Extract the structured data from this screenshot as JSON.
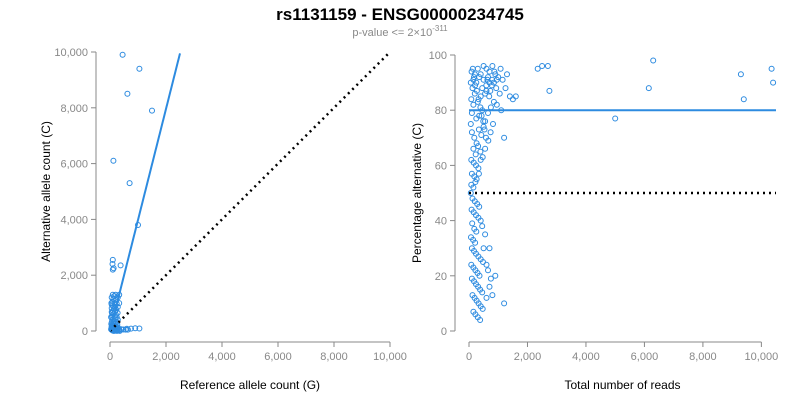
{
  "title": "rs1131159 - ENSG00000234745",
  "subtitle": {
    "prefix": "p-value <= 2",
    "times": "×",
    "base": "10",
    "exponent": "-311"
  },
  "colors": {
    "points": "#2d8be0",
    "fit": "#2d8be0",
    "reference": "#000000",
    "axis": "#888888"
  },
  "chart_data": [
    {
      "type": "scatter",
      "xlabel": "Reference allele count (G)",
      "ylabel": "Alternative allele count (C)",
      "xlim": [
        0,
        10000
      ],
      "ylim": [
        0,
        10000
      ],
      "xticks": [
        0,
        2000,
        4000,
        6000,
        8000,
        10000
      ],
      "yticks": [
        0,
        2000,
        4000,
        6000,
        8000,
        10000
      ],
      "tick_labels_x": [
        "0",
        "2,000",
        "4,000",
        "6,000",
        "8,000",
        "10,000"
      ],
      "tick_labels_y": [
        "0",
        "2,000",
        "4,000",
        "6,000",
        "8,000",
        "10,000"
      ],
      "fit_line": [
        [
          0,
          0
        ],
        [
          2500,
          9950
        ]
      ],
      "reference_line": [
        [
          0,
          0
        ],
        [
          10000,
          10000
        ]
      ],
      "points": [
        [
          450,
          9900
        ],
        [
          1050,
          9400
        ],
        [
          620,
          8500
        ],
        [
          1500,
          7900
        ],
        [
          120,
          6100
        ],
        [
          700,
          5300
        ],
        [
          1000,
          3800
        ],
        [
          100,
          2550
        ],
        [
          90,
          2400
        ],
        [
          130,
          2250
        ],
        [
          100,
          2200
        ],
        [
          380,
          2350
        ],
        [
          100,
          1300
        ],
        [
          150,
          1250
        ],
        [
          200,
          1300
        ],
        [
          330,
          1300
        ],
        [
          60,
          1200
        ],
        [
          120,
          1150
        ],
        [
          220,
          1100
        ],
        [
          280,
          1200
        ],
        [
          90,
          1050
        ],
        [
          160,
          1000
        ],
        [
          60,
          950
        ],
        [
          240,
          980
        ],
        [
          330,
          1000
        ],
        [
          100,
          900
        ],
        [
          190,
          870
        ],
        [
          280,
          860
        ],
        [
          60,
          820
        ],
        [
          150,
          800
        ],
        [
          220,
          760
        ],
        [
          100,
          720
        ],
        [
          180,
          700
        ],
        [
          60,
          680
        ],
        [
          270,
          650
        ],
        [
          130,
          620
        ],
        [
          210,
          580
        ],
        [
          80,
          560
        ],
        [
          160,
          520
        ],
        [
          240,
          500
        ],
        [
          60,
          470
        ],
        [
          120,
          440
        ],
        [
          190,
          420
        ],
        [
          280,
          400
        ],
        [
          80,
          380
        ],
        [
          150,
          350
        ],
        [
          230,
          320
        ],
        [
          60,
          300
        ],
        [
          120,
          280
        ],
        [
          190,
          260
        ],
        [
          260,
          240
        ],
        [
          80,
          220
        ],
        [
          150,
          200
        ],
        [
          210,
          180
        ],
        [
          60,
          160
        ],
        [
          130,
          150
        ],
        [
          190,
          140
        ],
        [
          280,
          130
        ],
        [
          80,
          120
        ],
        [
          150,
          110
        ],
        [
          220,
          100
        ],
        [
          60,
          90
        ],
        [
          120,
          85
        ],
        [
          180,
          80
        ],
        [
          250,
          75
        ],
        [
          320,
          70
        ],
        [
          400,
          60
        ],
        [
          480,
          55
        ],
        [
          560,
          50
        ],
        [
          640,
          50
        ],
        [
          80,
          60
        ],
        [
          140,
          55
        ],
        [
          200,
          45
        ],
        [
          260,
          40
        ],
        [
          330,
          35
        ],
        [
          90,
          30
        ],
        [
          160,
          25
        ],
        [
          230,
          20
        ],
        [
          300,
          15
        ],
        [
          110,
          10
        ],
        [
          180,
          8
        ],
        [
          250,
          5
        ],
        [
          350,
          3
        ],
        [
          600,
          80
        ],
        [
          750,
          85
        ],
        [
          900,
          100
        ],
        [
          1050,
          90
        ],
        [
          60,
          40
        ],
        [
          100,
          20
        ],
        [
          140,
          5
        ],
        [
          50,
          1000
        ],
        [
          70,
          650
        ],
        [
          40,
          500
        ],
        [
          45,
          250
        ],
        [
          55,
          120
        ],
        [
          40,
          60
        ]
      ]
    },
    {
      "type": "scatter",
      "xlabel": "Total number of reads",
      "ylabel": "Percentage alternative (C)",
      "xlim": [
        0,
        10500
      ],
      "ylim": [
        0,
        100
      ],
      "xticks": [
        0,
        2000,
        4000,
        6000,
        8000,
        10000
      ],
      "yticks": [
        0,
        20,
        40,
        60,
        80,
        100
      ],
      "tick_labels_x": [
        "0",
        "2,000",
        "4,000",
        "6,000",
        "8,000",
        "10,000"
      ],
      "tick_labels_y": [
        "0",
        "20",
        "40",
        "60",
        "80",
        "100"
      ],
      "fit_line": [
        [
          0,
          80
        ],
        [
          10500,
          80
        ]
      ],
      "reference_line": [
        [
          0,
          50
        ],
        [
          10500,
          50
        ]
      ],
      "points": [
        [
          10350,
          95
        ],
        [
          10400,
          90
        ],
        [
          9300,
          93
        ],
        [
          9400,
          84
        ],
        [
          6300,
          98
        ],
        [
          6150,
          88
        ],
        [
          5000,
          77
        ],
        [
          2700,
          96
        ],
        [
          2500,
          96
        ],
        [
          2350,
          95
        ],
        [
          2750,
          87
        ],
        [
          1600,
          85
        ],
        [
          1500,
          84
        ],
        [
          1400,
          85
        ],
        [
          1250,
          88
        ],
        [
          1100,
          80
        ],
        [
          1200,
          70
        ],
        [
          900,
          93
        ],
        [
          950,
          91
        ],
        [
          850,
          90
        ],
        [
          780,
          89
        ],
        [
          700,
          90
        ],
        [
          650,
          92
        ],
        [
          600,
          87
        ],
        [
          550,
          86
        ],
        [
          500,
          91
        ],
        [
          450,
          88
        ],
        [
          400,
          85
        ],
        [
          350,
          92
        ],
        [
          300,
          83
        ],
        [
          250,
          90
        ],
        [
          200,
          86
        ],
        [
          150,
          82
        ],
        [
          120,
          88
        ],
        [
          100,
          79
        ],
        [
          80,
          84
        ],
        [
          60,
          75
        ],
        [
          300,
          95
        ],
        [
          400,
          93
        ],
        [
          500,
          96
        ],
        [
          600,
          95
        ],
        [
          700,
          94
        ],
        [
          800,
          96
        ],
        [
          200,
          93
        ],
        [
          150,
          91
        ],
        [
          250,
          77
        ],
        [
          350,
          78
        ],
        [
          450,
          80
        ],
        [
          550,
          76
        ],
        [
          650,
          79
        ],
        [
          750,
          81
        ],
        [
          850,
          83
        ],
        [
          950,
          82
        ],
        [
          1050,
          86
        ],
        [
          100,
          72
        ],
        [
          180,
          70
        ],
        [
          260,
          68
        ],
        [
          340,
          73
        ],
        [
          420,
          71
        ],
        [
          500,
          74
        ],
        [
          580,
          70
        ],
        [
          660,
          69
        ],
        [
          740,
          72
        ],
        [
          820,
          75
        ],
        [
          150,
          66
        ],
        [
          230,
          64
        ],
        [
          310,
          67
        ],
        [
          390,
          65
        ],
        [
          470,
          63
        ],
        [
          550,
          66
        ],
        [
          80,
          62
        ],
        [
          160,
          61
        ],
        [
          240,
          60
        ],
        [
          320,
          59
        ],
        [
          400,
          62
        ],
        [
          100,
          57
        ],
        [
          180,
          56
        ],
        [
          260,
          55
        ],
        [
          340,
          57
        ],
        [
          80,
          53
        ],
        [
          150,
          52
        ],
        [
          220,
          54
        ],
        [
          60,
          50
        ],
        [
          120,
          48
        ],
        [
          200,
          47
        ],
        [
          280,
          46
        ],
        [
          90,
          44
        ],
        [
          160,
          43
        ],
        [
          240,
          42
        ],
        [
          320,
          41
        ],
        [
          400,
          40
        ],
        [
          110,
          39
        ],
        [
          180,
          37
        ],
        [
          250,
          36
        ],
        [
          70,
          34
        ],
        [
          140,
          33
        ],
        [
          210,
          32
        ],
        [
          100,
          30
        ],
        [
          170,
          29
        ],
        [
          240,
          28
        ],
        [
          320,
          27
        ],
        [
          400,
          26
        ],
        [
          480,
          25
        ],
        [
          80,
          24
        ],
        [
          150,
          23
        ],
        [
          220,
          22
        ],
        [
          290,
          21
        ],
        [
          360,
          20
        ],
        [
          100,
          19
        ],
        [
          170,
          18
        ],
        [
          240,
          17
        ],
        [
          310,
          16
        ],
        [
          380,
          15
        ],
        [
          450,
          14
        ],
        [
          120,
          13
        ],
        [
          190,
          12
        ],
        [
          260,
          11
        ],
        [
          330,
          10
        ],
        [
          400,
          9
        ],
        [
          470,
          8
        ],
        [
          150,
          7
        ],
        [
          220,
          6
        ],
        [
          300,
          5
        ],
        [
          380,
          4
        ],
        [
          600,
          12
        ],
        [
          700,
          16
        ],
        [
          800,
          13
        ],
        [
          1200,
          10
        ],
        [
          900,
          20
        ],
        [
          500,
          30
        ],
        [
          600,
          24
        ],
        [
          700,
          30
        ],
        [
          350,
          45
        ],
        [
          450,
          38
        ],
        [
          550,
          35
        ],
        [
          650,
          22
        ],
        [
          750,
          19
        ],
        [
          60,
          90
        ],
        [
          90,
          94
        ],
        [
          130,
          95
        ],
        [
          170,
          92
        ],
        [
          210,
          89
        ],
        [
          270,
          87
        ],
        [
          330,
          84
        ],
        [
          390,
          81
        ],
        [
          430,
          78
        ],
        [
          490,
          76
        ],
        [
          530,
          73
        ],
        [
          590,
          89
        ],
        [
          630,
          91
        ],
        [
          690,
          85
        ],
        [
          730,
          87
        ],
        [
          790,
          91
        ],
        [
          870,
          94
        ],
        [
          930,
          88
        ],
        [
          1000,
          92
        ],
        [
          1080,
          95
        ],
        [
          1150,
          91
        ],
        [
          1300,
          93
        ]
      ]
    }
  ]
}
